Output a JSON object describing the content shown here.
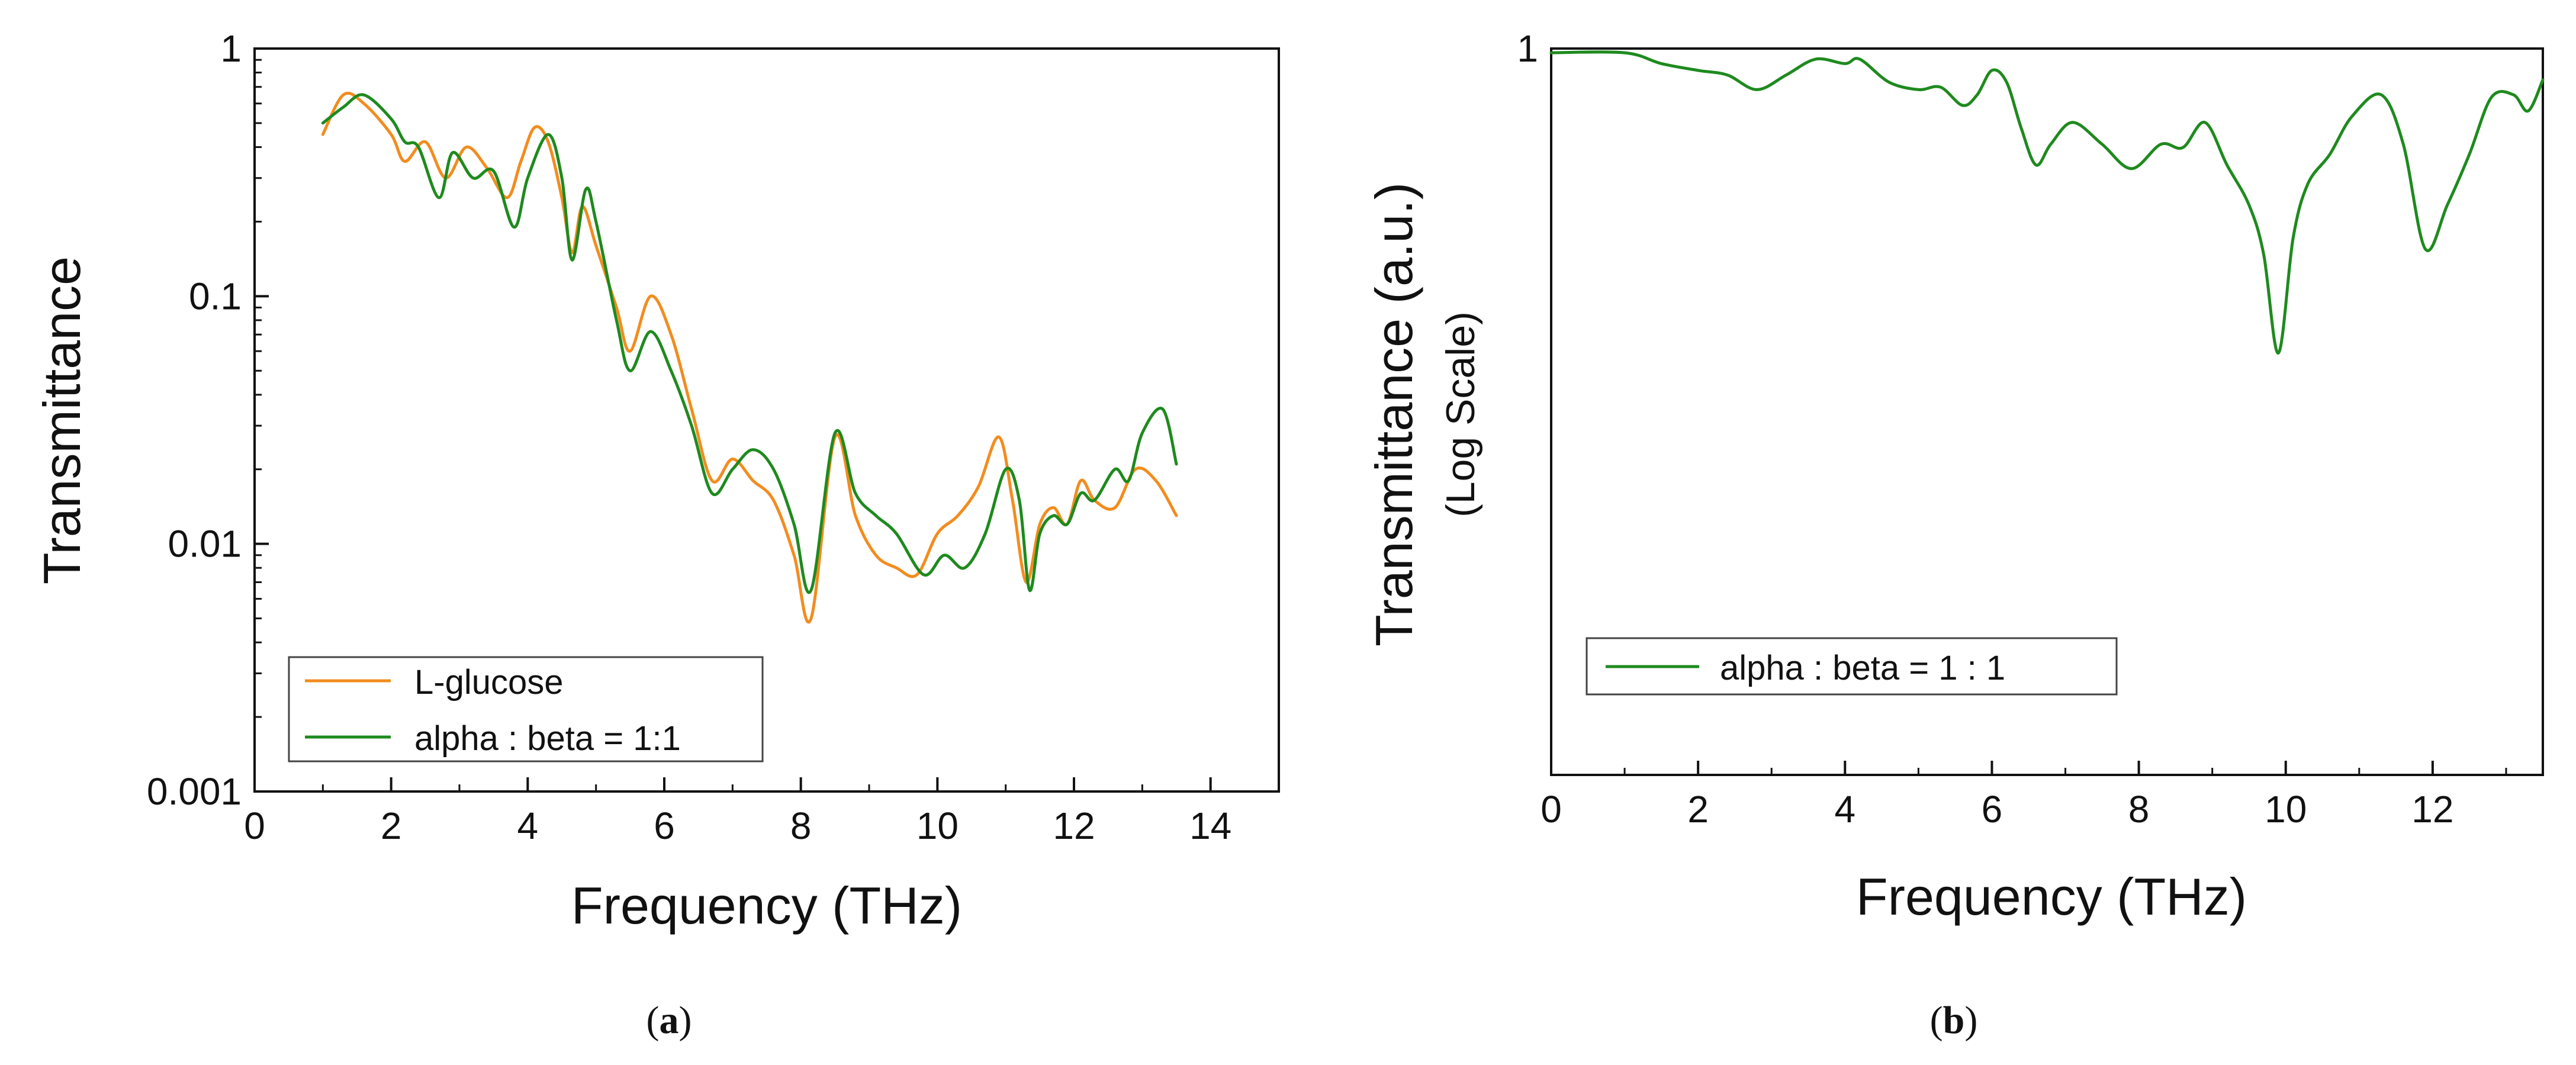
{
  "colors": {
    "orange": "#F28C1E",
    "green": "#1E8A1E",
    "axis": "#111111"
  },
  "chart_data": [
    {
      "type": "line",
      "panel": "a",
      "caption_open": "(",
      "caption_label": "a",
      "caption_close": ")",
      "xlabel": "Frequency (THz)",
      "ylabel": "Transmittance",
      "ylabel_sub": "",
      "yscale": "log",
      "xlim": [
        0,
        15
      ],
      "ylim": [
        0.001,
        1
      ],
      "xticks": [
        0,
        2,
        4,
        6,
        8,
        10,
        12,
        14
      ],
      "xtick_labels": [
        "0",
        "2",
        "4",
        "6",
        "8",
        "10",
        "12",
        "14"
      ],
      "yticks": [
        0.001,
        0.01,
        0.1,
        1
      ],
      "ytick_labels": [
        "0.001",
        "0.01",
        "0.1",
        "1"
      ],
      "legend_position": "bottom-left",
      "series": [
        {
          "name": "L-glucose",
          "color_key": "orange",
          "x": [
            1.0,
            1.3,
            1.6,
            2.0,
            2.2,
            2.5,
            2.8,
            3.1,
            3.4,
            3.7,
            3.9,
            4.1,
            4.3,
            4.5,
            4.65,
            4.8,
            5.0,
            5.3,
            5.5,
            5.8,
            6.1,
            6.4,
            6.7,
            7.0,
            7.3,
            7.6,
            7.9,
            8.15,
            8.5,
            8.8,
            9.1,
            9.4,
            9.7,
            10.0,
            10.3,
            10.6,
            10.9,
            11.1,
            11.3,
            11.5,
            11.7,
            11.9,
            12.1,
            12.3,
            12.6,
            12.9,
            13.2,
            13.5
          ],
          "y": [
            0.45,
            0.65,
            0.6,
            0.45,
            0.35,
            0.42,
            0.3,
            0.4,
            0.33,
            0.25,
            0.35,
            0.48,
            0.42,
            0.25,
            0.15,
            0.23,
            0.16,
            0.09,
            0.06,
            0.1,
            0.07,
            0.035,
            0.018,
            0.022,
            0.018,
            0.015,
            0.009,
            0.005,
            0.027,
            0.013,
            0.009,
            0.008,
            0.0075,
            0.011,
            0.013,
            0.017,
            0.027,
            0.015,
            0.007,
            0.012,
            0.014,
            0.012,
            0.018,
            0.015,
            0.014,
            0.02,
            0.018,
            0.013
          ]
        },
        {
          "name": "alpha : beta = 1:1",
          "color_key": "green",
          "x": [
            1.0,
            1.3,
            1.6,
            2.0,
            2.2,
            2.4,
            2.7,
            2.9,
            3.2,
            3.5,
            3.8,
            4.0,
            4.3,
            4.5,
            4.65,
            4.85,
            5.0,
            5.3,
            5.5,
            5.8,
            6.1,
            6.4,
            6.7,
            7.0,
            7.3,
            7.6,
            7.9,
            8.15,
            8.5,
            8.8,
            9.1,
            9.4,
            9.8,
            10.1,
            10.4,
            10.7,
            11.0,
            11.2,
            11.35,
            11.5,
            11.7,
            11.9,
            12.1,
            12.3,
            12.6,
            12.8,
            13.0,
            13.3,
            13.5
          ],
          "y": [
            0.5,
            0.58,
            0.65,
            0.52,
            0.42,
            0.4,
            0.25,
            0.38,
            0.3,
            0.32,
            0.19,
            0.3,
            0.45,
            0.3,
            0.14,
            0.27,
            0.2,
            0.08,
            0.05,
            0.072,
            0.05,
            0.03,
            0.016,
            0.02,
            0.024,
            0.02,
            0.012,
            0.0065,
            0.028,
            0.016,
            0.013,
            0.011,
            0.0075,
            0.009,
            0.008,
            0.011,
            0.02,
            0.015,
            0.0065,
            0.011,
            0.013,
            0.012,
            0.016,
            0.015,
            0.02,
            0.018,
            0.028,
            0.035,
            0.021
          ]
        }
      ]
    },
    {
      "type": "line",
      "panel": "b",
      "caption_open": "(",
      "caption_label": "b",
      "caption_close": ")",
      "xlabel": "Frequency (THz)",
      "ylabel": "Transmittance (a.u.)",
      "ylabel_sub": "(Log Scale)",
      "yscale": "log",
      "xlim": [
        0,
        13.5
      ],
      "ylim": [
        0.03,
        1
      ],
      "xticks": [
        0,
        2,
        4,
        6,
        8,
        10,
        12
      ],
      "xtick_labels": [
        "0",
        "2",
        "4",
        "6",
        "8",
        "10",
        "12"
      ],
      "yticks": [
        1
      ],
      "ytick_labels": [
        "1"
      ],
      "legend_position": "bottom-left",
      "series": [
        {
          "name": "alpha : beta = 1 : 1",
          "color_key": "green",
          "x": [
            0.0,
            1.0,
            1.5,
            2.0,
            2.4,
            2.8,
            3.2,
            3.6,
            4.0,
            4.2,
            4.6,
            5.0,
            5.3,
            5.6,
            5.8,
            6.0,
            6.2,
            6.4,
            6.6,
            6.8,
            7.1,
            7.5,
            7.9,
            8.3,
            8.6,
            8.9,
            9.2,
            9.5,
            9.7,
            9.9,
            10.1,
            10.3,
            10.6,
            10.9,
            11.3,
            11.6,
            11.9,
            12.2,
            12.5,
            12.8,
            13.1,
            13.3,
            13.5
          ],
          "y": [
            0.98,
            0.98,
            0.93,
            0.9,
            0.88,
            0.82,
            0.88,
            0.95,
            0.93,
            0.95,
            0.85,
            0.82,
            0.83,
            0.76,
            0.8,
            0.9,
            0.85,
            0.68,
            0.57,
            0.63,
            0.7,
            0.63,
            0.56,
            0.63,
            0.62,
            0.7,
            0.57,
            0.47,
            0.37,
            0.23,
            0.4,
            0.52,
            0.6,
            0.72,
            0.8,
            0.63,
            0.38,
            0.47,
            0.6,
            0.79,
            0.8,
            0.74,
            0.86
          ]
        }
      ]
    }
  ]
}
